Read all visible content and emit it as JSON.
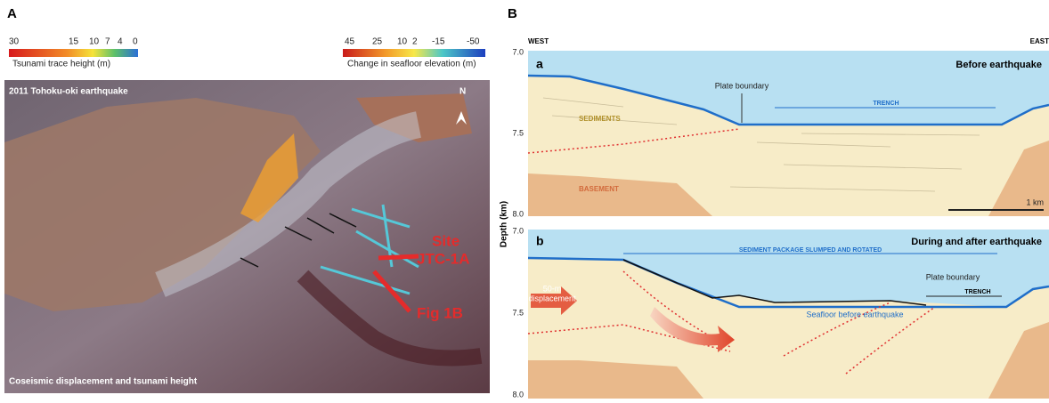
{
  "panel_a": {
    "label": "A",
    "legend_left": {
      "ticks": [
        "30",
        "15",
        "10",
        "7",
        "4",
        "0"
      ],
      "title": "Tsunami trace height (m)"
    },
    "legend_right": {
      "ticks": [
        "45",
        "25",
        "10",
        "2",
        "-15",
        "-50"
      ],
      "title": "Change in seafloor elevation (m)"
    },
    "map_title": "2011 Tohoku-oki earthquake",
    "north": "N",
    "site_label": [
      "Site",
      "JTC-1A"
    ],
    "fig_label": "Fig 1B",
    "caption": "Coseismic displacement and tsunami height"
  },
  "panel_b": {
    "label": "B",
    "west": "WEST",
    "east": "EAST",
    "y_axis_label": "Depth (km)",
    "sections": [
      {
        "label": "a",
        "title": "Before earthquake",
        "yticks": [
          "7.0",
          "7.5",
          "8.0"
        ],
        "plate_boundary": "Plate boundary",
        "trench": "TRENCH",
        "sediments": "SEDIMENTS",
        "basement": "BASEMENT",
        "scale": "1 km"
      },
      {
        "label": "b",
        "title": "During and after earthquake",
        "yticks": [
          "7.0",
          "7.5",
          "8.0"
        ],
        "slump": "SEDIMENT PACKAGE SLUMPED AND ROTATED",
        "displacement": [
          "50-m",
          "displacement"
        ],
        "plate_boundary": "Plate boundary",
        "trench": "TRENCH",
        "seafloor_before": "Seafloor before earthquake"
      }
    ]
  }
}
